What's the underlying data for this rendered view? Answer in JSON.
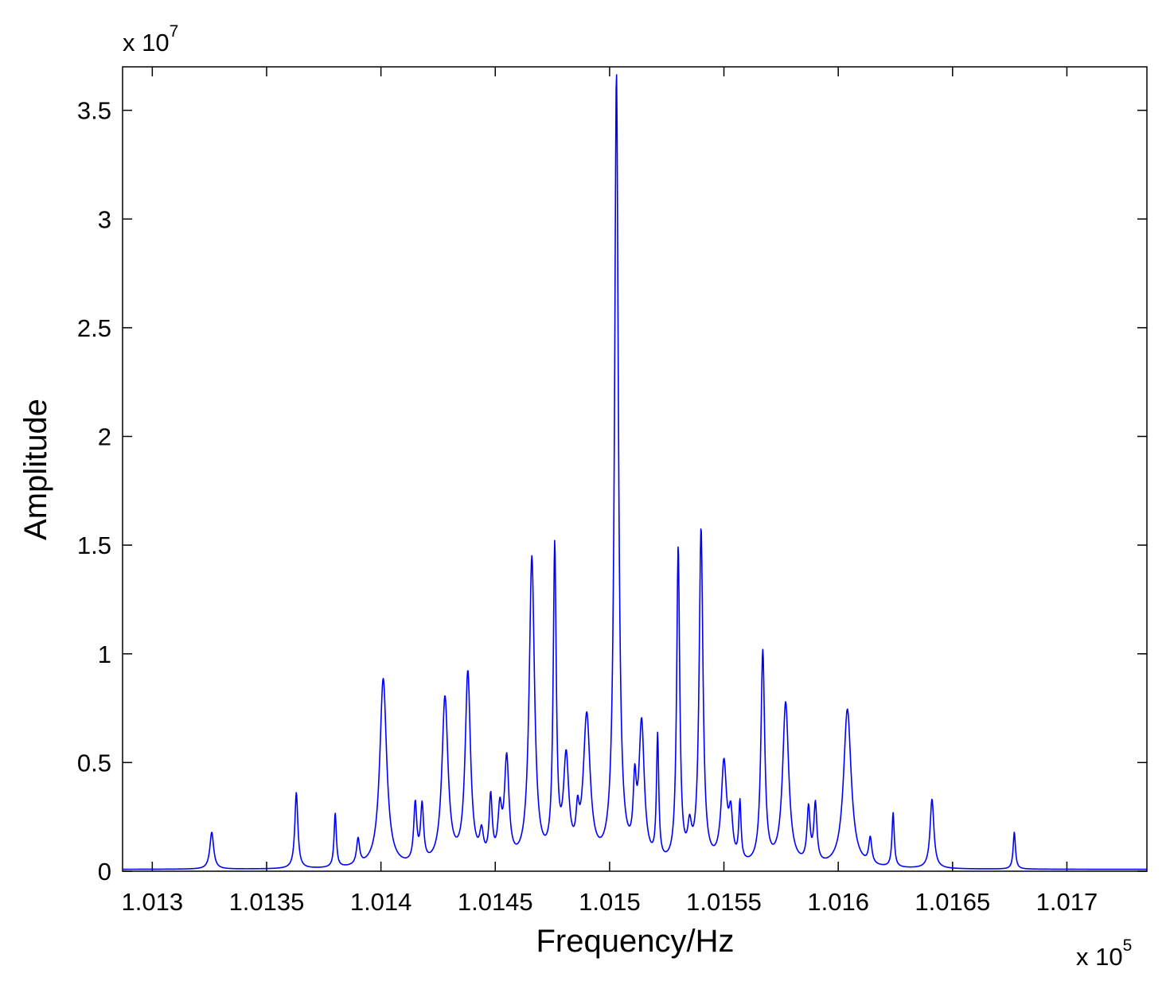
{
  "chart_data": {
    "type": "line",
    "title": "",
    "xlabel": "Frequency/Hz",
    "ylabel": "Amplitude",
    "x_multiplier_label": "x 10",
    "x_multiplier_exponent": "5",
    "y_multiplier_label": "x 10",
    "y_multiplier_exponent": "7",
    "xlim": [
      1.01287,
      1.01735
    ],
    "ylim": [
      0,
      3.7
    ],
    "xticks": [
      1.013,
      1.0135,
      1.014,
      1.0145,
      1.015,
      1.0155,
      1.016,
      1.0165,
      1.017
    ],
    "xtick_labels": [
      "1.013",
      "1.0135",
      "1.014",
      "1.0145",
      "1.015",
      "1.0155",
      "1.016",
      "1.0165",
      "1.017"
    ],
    "yticks": [
      0,
      0.5,
      1,
      1.5,
      2,
      2.5,
      3,
      3.5
    ],
    "ytick_labels": [
      "0",
      "0.5",
      "1",
      "1.5",
      "2",
      "2.5",
      "3",
      "3.5"
    ],
    "grid": false,
    "series": [
      {
        "color": "#0000ff",
        "baseline_left": 0.008,
        "baseline_right": 0.008,
        "peaks": [
          {
            "x": 1.01326,
            "y": 0.17,
            "w": 1e-05
          },
          {
            "x": 1.01363,
            "y": 0.35,
            "w": 8e-06
          },
          {
            "x": 1.0138,
            "y": 0.25,
            "w": 6e-06
          },
          {
            "x": 1.0139,
            "y": 0.12,
            "w": 8e-06
          },
          {
            "x": 1.01401,
            "y": 0.87,
            "w": 1.8e-05
          },
          {
            "x": 1.01415,
            "y": 0.27,
            "w": 8e-06
          },
          {
            "x": 1.01418,
            "y": 0.26,
            "w": 8e-06
          },
          {
            "x": 1.01428,
            "y": 0.77,
            "w": 1.6e-05
          },
          {
            "x": 1.01438,
            "y": 0.88,
            "w": 1.4e-05
          },
          {
            "x": 1.01444,
            "y": 0.12,
            "w": 1e-05
          },
          {
            "x": 1.01448,
            "y": 0.29,
            "w": 8e-06
          },
          {
            "x": 1.01452,
            "y": 0.22,
            "w": 1e-05
          },
          {
            "x": 1.01455,
            "y": 0.47,
            "w": 1.2e-05
          },
          {
            "x": 1.01466,
            "y": 1.41,
            "w": 1.4e-05
          },
          {
            "x": 1.01476,
            "y": 1.43,
            "w": 8e-06
          },
          {
            "x": 1.01481,
            "y": 0.46,
            "w": 1.4e-05
          },
          {
            "x": 1.01486,
            "y": 0.16,
            "w": 8e-06
          },
          {
            "x": 1.0149,
            "y": 0.67,
            "w": 1.8e-05
          },
          {
            "x": 1.01503,
            "y": 3.63,
            "w": 1e-05
          },
          {
            "x": 1.01511,
            "y": 0.3,
            "w": 8e-06
          },
          {
            "x": 1.01514,
            "y": 0.63,
            "w": 1.4e-05
          },
          {
            "x": 1.01521,
            "y": 0.57,
            "w": 6e-06
          },
          {
            "x": 1.0153,
            "y": 1.45,
            "w": 8e-06
          },
          {
            "x": 1.01535,
            "y": 0.14,
            "w": 1e-05
          },
          {
            "x": 1.0154,
            "y": 1.54,
            "w": 1e-05
          },
          {
            "x": 1.0155,
            "y": 0.46,
            "w": 1.4e-05
          },
          {
            "x": 1.01553,
            "y": 0.2,
            "w": 1e-05
          },
          {
            "x": 1.01557,
            "y": 0.27,
            "w": 6e-06
          },
          {
            "x": 1.01567,
            "y": 0.98,
            "w": 1e-05
          },
          {
            "x": 1.01577,
            "y": 0.75,
            "w": 1.6e-05
          },
          {
            "x": 1.01587,
            "y": 0.25,
            "w": 8e-06
          },
          {
            "x": 1.0159,
            "y": 0.27,
            "w": 8e-06
          },
          {
            "x": 1.01604,
            "y": 0.73,
            "w": 2e-05
          },
          {
            "x": 1.01614,
            "y": 0.12,
            "w": 8e-06
          },
          {
            "x": 1.01624,
            "y": 0.25,
            "w": 6e-06
          },
          {
            "x": 1.01641,
            "y": 0.32,
            "w": 1e-05
          },
          {
            "x": 1.01677,
            "y": 0.17,
            "w": 6e-06
          }
        ]
      }
    ]
  }
}
